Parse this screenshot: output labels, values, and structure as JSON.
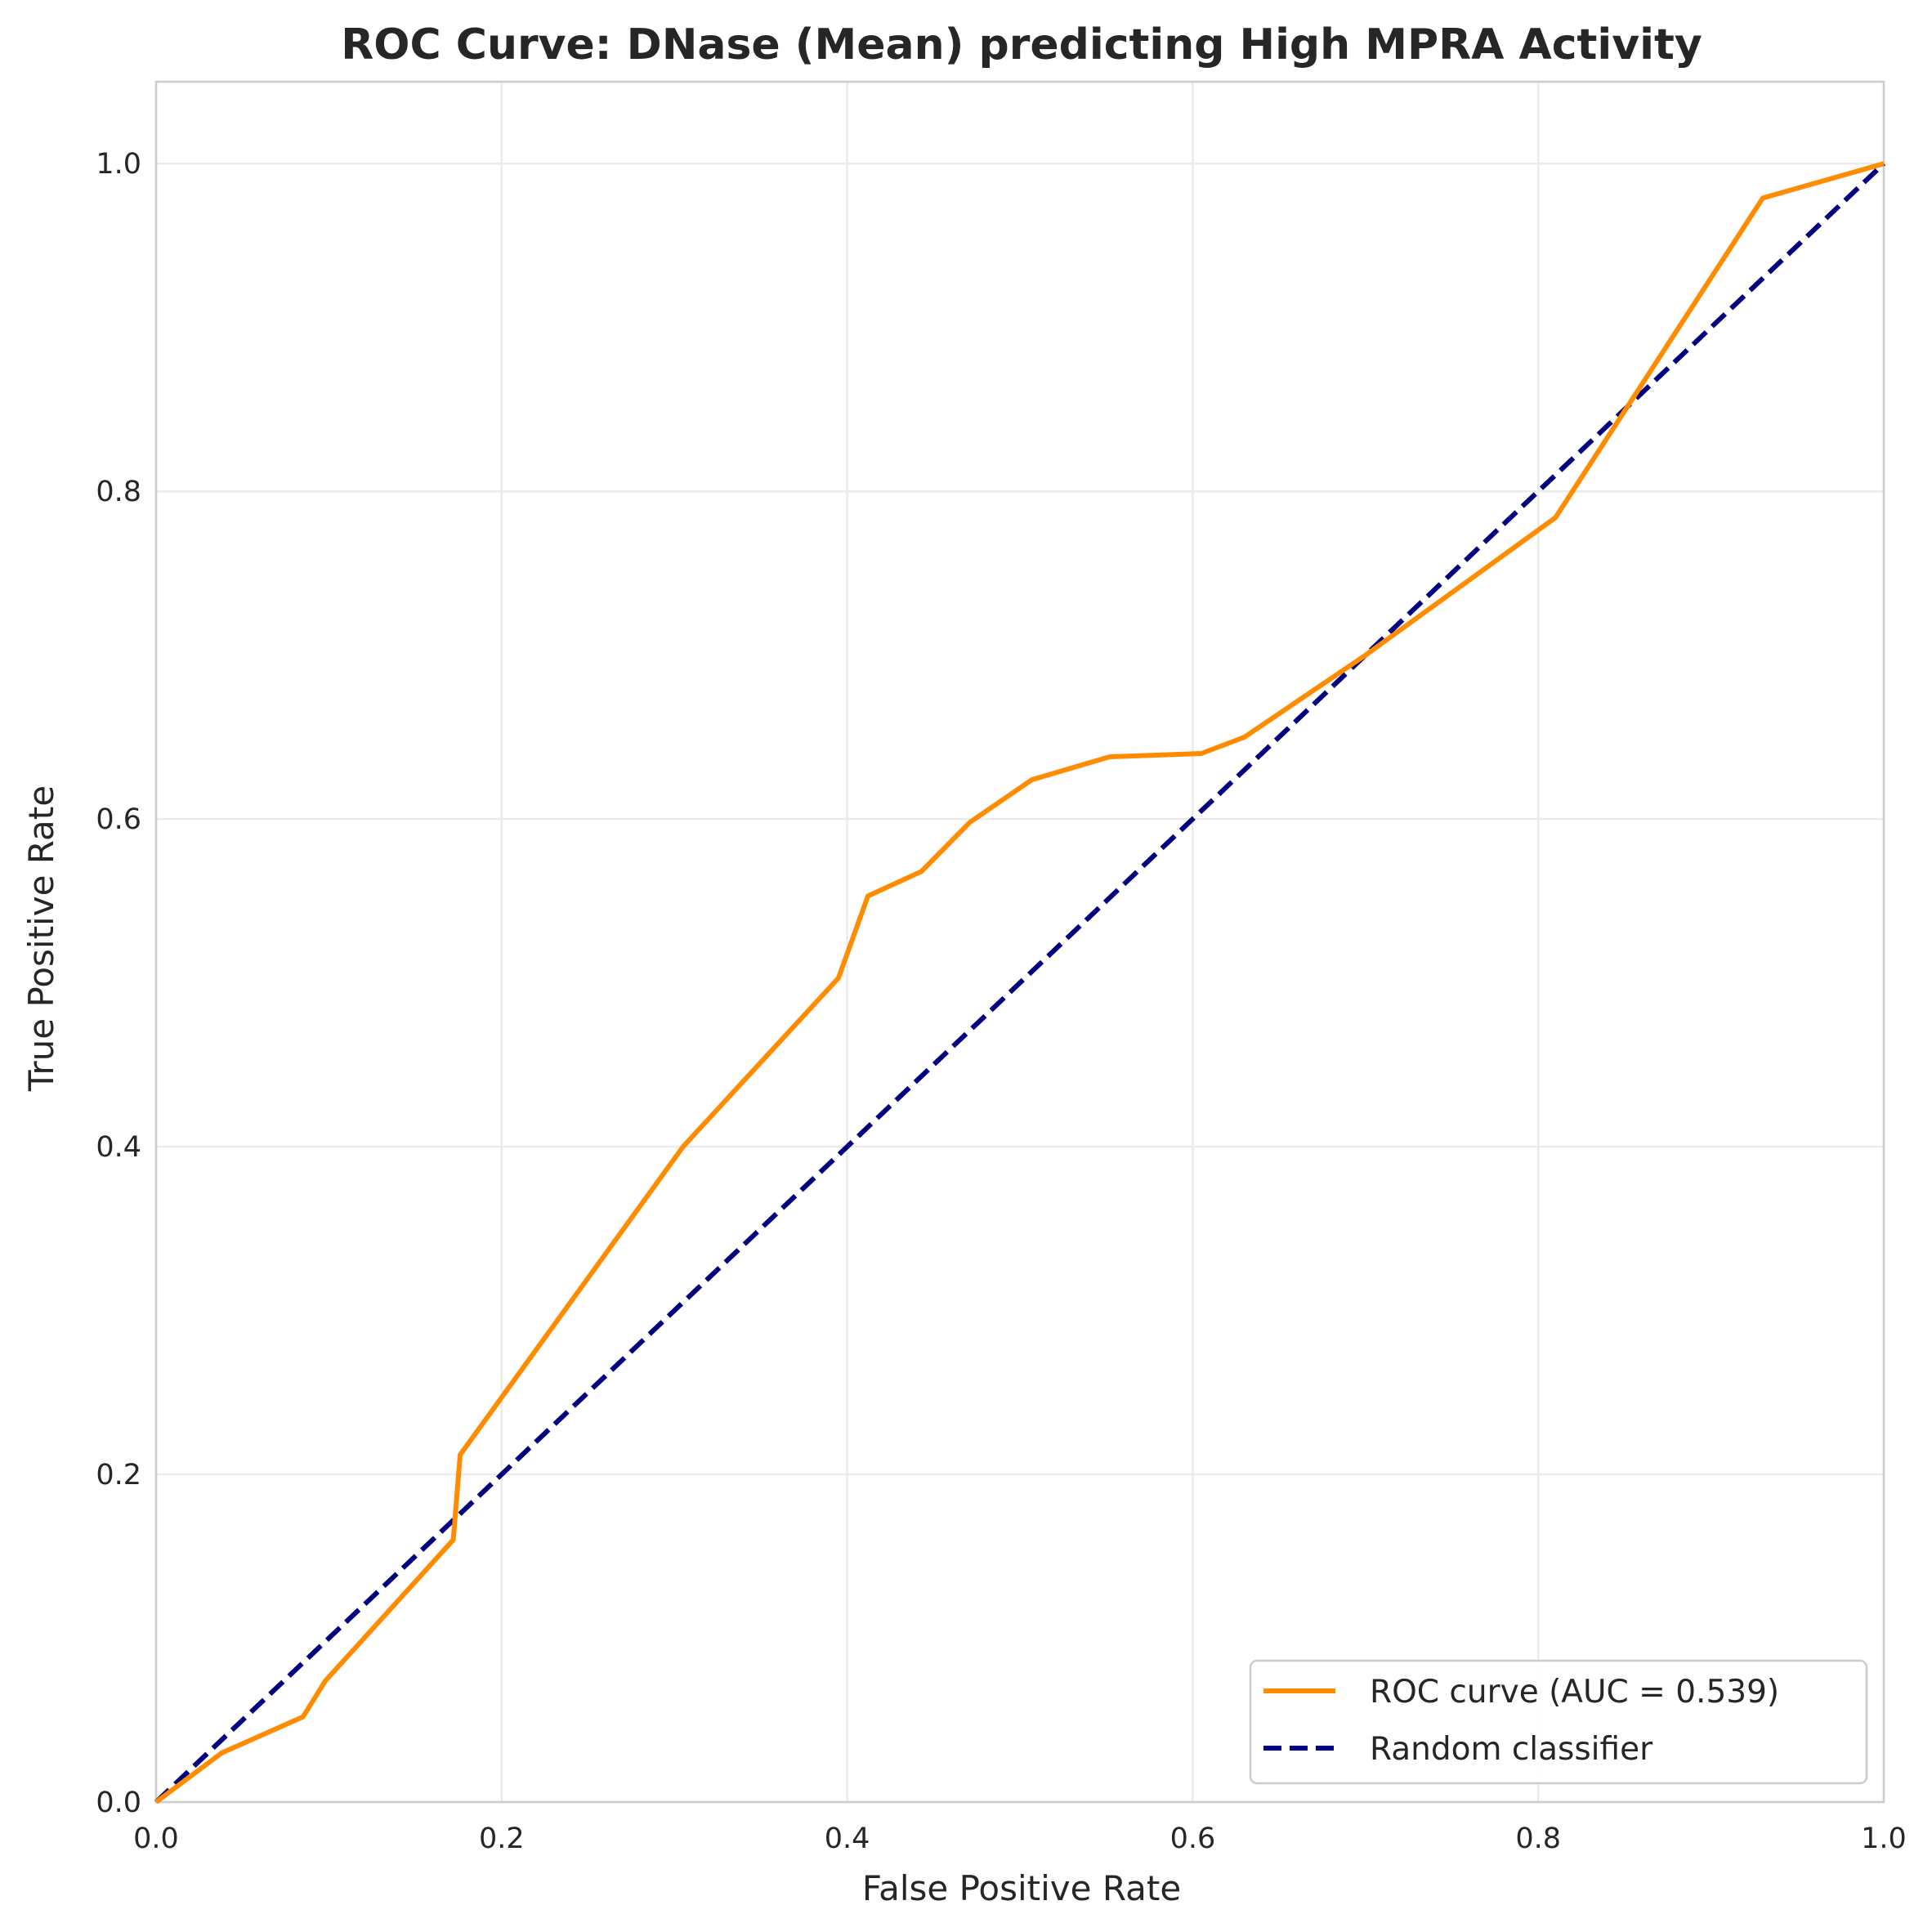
{
  "chart_data": {
    "type": "line",
    "title": "ROC Curve: DNase (Mean) predicting High MPRA Activity",
    "xlabel": "False Positive Rate",
    "ylabel": "True Positive Rate",
    "xlim": [
      0.0,
      1.0
    ],
    "ylim": [
      0.0,
      1.05
    ],
    "xticks": [
      "0.0",
      "0.2",
      "0.4",
      "0.6",
      "0.8",
      "1.0"
    ],
    "yticks": [
      "0.0",
      "0.2",
      "0.4",
      "0.6",
      "0.8",
      "1.0"
    ],
    "grid": true,
    "legend_position": "lower-right",
    "series": [
      {
        "name": "ROC curve (AUC = 0.539)",
        "color": "#ff8c00",
        "style": "solid",
        "x": [
          0.0,
          0.038,
          0.085,
          0.098,
          0.172,
          0.176,
          0.305,
          0.395,
          0.412,
          0.443,
          0.471,
          0.507,
          0.552,
          0.605,
          0.63,
          0.7,
          0.81,
          0.93,
          1.0
        ],
        "y": [
          0.0,
          0.03,
          0.052,
          0.074,
          0.16,
          0.212,
          0.4,
          0.503,
          0.553,
          0.568,
          0.598,
          0.624,
          0.638,
          0.64,
          0.65,
          0.7,
          0.784,
          0.979,
          1.0
        ]
      },
      {
        "name": "Random classifier",
        "color": "#000080",
        "style": "dashed",
        "x": [
          0.0,
          1.0
        ],
        "y": [
          0.0,
          1.0
        ]
      }
    ]
  }
}
